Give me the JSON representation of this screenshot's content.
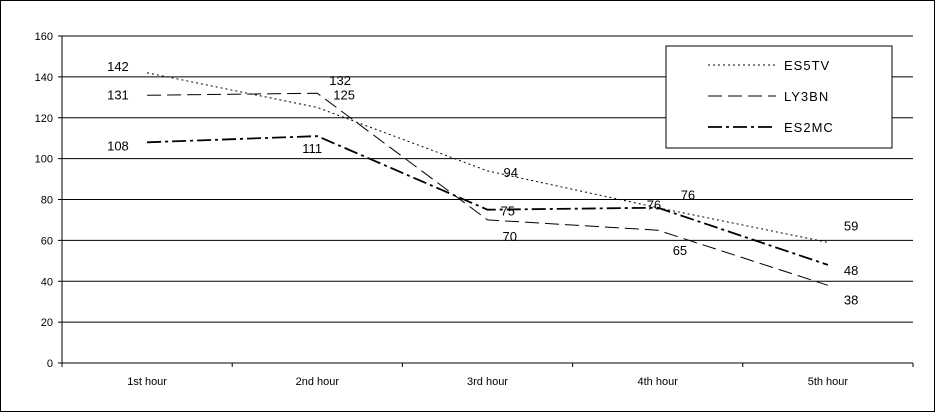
{
  "chart_data": {
    "type": "line",
    "title": "",
    "xlabel": "",
    "ylabel": "",
    "categories": [
      "1st hour",
      "2nd hour",
      "3rd hour",
      "4th hour",
      "5th hour"
    ],
    "ylim": [
      0,
      160
    ],
    "yticks": [
      0,
      20,
      40,
      60,
      80,
      100,
      120,
      140,
      160
    ],
    "grid": true,
    "legend": "top-right",
    "series": [
      {
        "name": "ES5TV",
        "values": [
          142,
          125,
          94,
          76,
          59
        ],
        "dash": "dotted",
        "color": "#000000"
      },
      {
        "name": "LY3BN",
        "values": [
          131,
          132,
          70,
          65,
          38
        ],
        "dash": "dashed",
        "color": "#000000"
      },
      {
        "name": "ES2MC",
        "values": [
          108,
          111,
          75,
          76,
          48
        ],
        "dash": "dash-dot",
        "color": "#000000"
      }
    ]
  }
}
